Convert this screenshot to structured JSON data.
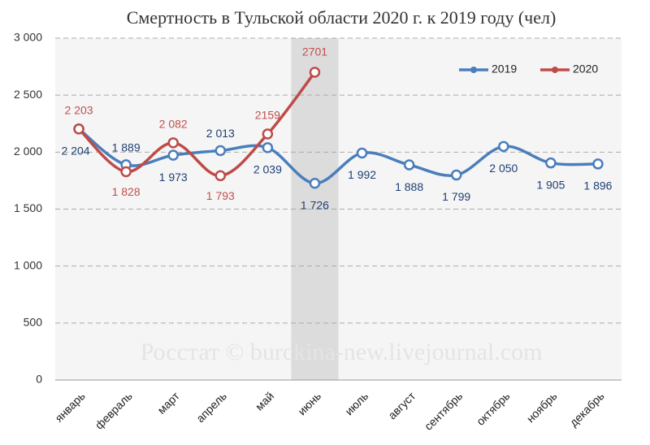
{
  "chart_data": {
    "type": "line",
    "title": "Смертность в Тульской области 2020 г. к 2019 году (чел)",
    "categories": [
      "январь",
      "февраль",
      "март",
      "апрель",
      "май",
      "июнь",
      "июль",
      "август",
      "сентябрь",
      "октябрь",
      "ноябрь",
      "декабрь"
    ],
    "series": [
      {
        "name": "2019",
        "color": "#4a7ebb",
        "label_color": "#1f3f73",
        "values": [
          2204,
          1889,
          1973,
          2013,
          2039,
          1726,
          1992,
          1888,
          1799,
          2050,
          1905,
          1896
        ],
        "value_labels": [
          "2 204",
          "1 889",
          "1 973",
          "2 013",
          "2 039",
          "1 726",
          "1 992",
          "1 888",
          "1 799",
          "2 050",
          "1 905",
          "1 896"
        ]
      },
      {
        "name": "2020",
        "color": "#be4b48",
        "label_color": "#c0504d",
        "values": [
          2203,
          1828,
          2082,
          1793,
          2159,
          2701,
          null,
          null,
          null,
          null,
          null,
          null
        ],
        "value_labels": [
          "2 203",
          "1 828",
          "2 082",
          "1 793",
          "2159",
          "2701",
          null,
          null,
          null,
          null,
          null,
          null
        ]
      }
    ],
    "ylim": [
      0,
      3000
    ],
    "yticks": [
      0,
      500,
      {
        "value": 1000,
        "label": "1 000"
      },
      {
        "value": 1500,
        "label": "1 500"
      },
      {
        "value": 2000,
        "label": "2 000"
      },
      {
        "value": 2500,
        "label": "2 500"
      },
      {
        "value": 3000,
        "label": "3 000"
      }
    ],
    "grid": true,
    "smooth": true,
    "highlight": "июнь",
    "legend": "top-right",
    "annotation": "Росстат © burckina-new.livejournal.com"
  }
}
